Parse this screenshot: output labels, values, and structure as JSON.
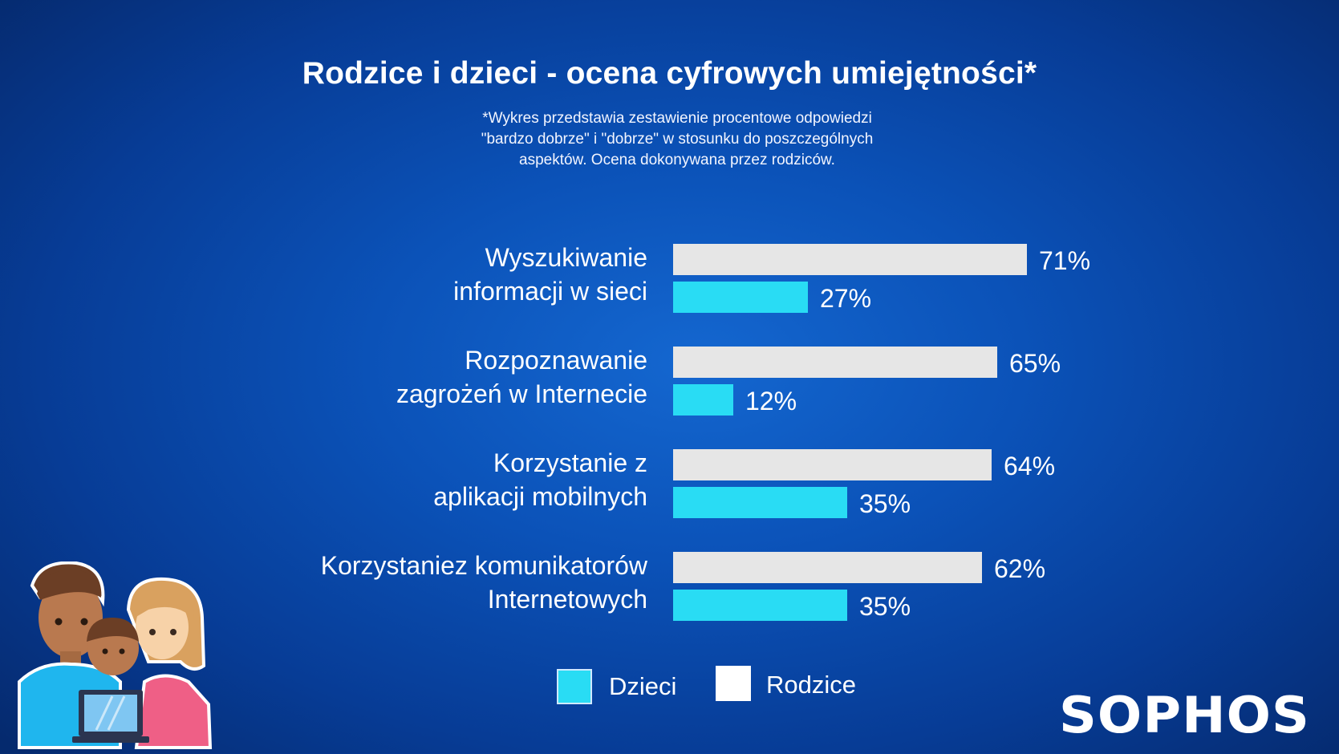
{
  "header": {
    "title": "Rodzice i dzieci - ocena cyfrowych umiejętności*",
    "subtitle_lines": [
      "*Wykres przedstawia zestawienie procentowe odpowiedzi",
      "\"bardzo dobrze\" i \"dobrze\" w stosunku do poszczególnych",
      "aspektów. Ocena dokonywana przez rodziców."
    ]
  },
  "chart_data": {
    "type": "bar",
    "orientation": "horizontal",
    "categories": [
      [
        "Wyszukiwanie",
        "informacji w sieci"
      ],
      [
        "Rozpoznawanie",
        "zagrożeń w Internecie"
      ],
      [
        "Korzystanie z",
        "aplikacji mobilnych"
      ],
      [
        "Korzystaniez komunikatorów",
        "Internetowych"
      ]
    ],
    "series": [
      {
        "name": "Rodzice",
        "color": "#e6e6e6",
        "values": [
          71,
          65,
          64,
          62
        ],
        "labels": [
          "71%",
          "65%",
          "64%",
          "62%"
        ]
      },
      {
        "name": "Dzieci",
        "color": "#29dcf4",
        "values": [
          27,
          12,
          35,
          35
        ],
        "labels": [
          "27%",
          "12%",
          "35%",
          "35%"
        ]
      }
    ],
    "xlim": [
      0,
      100
    ],
    "legend": {
      "position": "bottom",
      "items": [
        "Dzieci",
        "Rodzice"
      ]
    }
  },
  "brand": {
    "logo_text": "SOPHOS"
  },
  "illustration": {
    "icon": "family-with-laptop-icon"
  }
}
